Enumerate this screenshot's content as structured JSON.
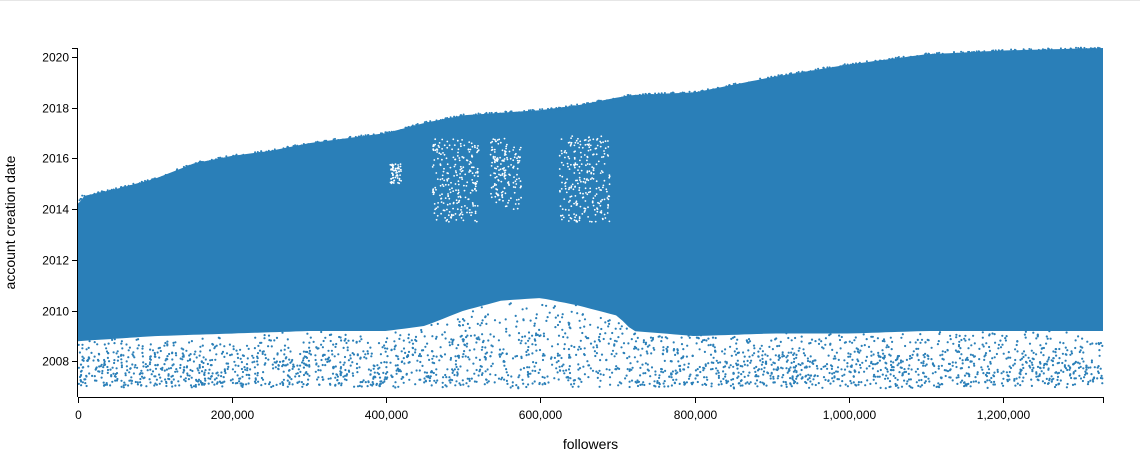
{
  "chart_data": {
    "type": "scatter",
    "xlabel": "followers",
    "ylabel": "account creation date",
    "xlim": [
      0,
      1330000
    ],
    "ylim": [
      2006.6,
      2020.35
    ],
    "x_ticks": [
      0,
      200000,
      400000,
      600000,
      800000,
      1000000,
      1200000
    ],
    "x_tick_labels": [
      "0",
      "200,000",
      "400,000",
      "600,000",
      "800,000",
      "1,000,000",
      "1,200,000"
    ],
    "y_ticks": [
      2008,
      2010,
      2012,
      2014,
      2016,
      2018,
      2020
    ],
    "y_tick_labels": [
      "2008",
      "2010",
      "2012",
      "2014",
      "2016",
      "2018",
      "2020"
    ],
    "grid": false,
    "legend": "none",
    "colors": {
      "points": "#2a7fb8"
    },
    "upper_envelope": {
      "x": [
        0,
        5000,
        20000,
        50000,
        100000,
        150000,
        200000,
        250000,
        300000,
        350000,
        400000,
        450000,
        500000,
        550000,
        600000,
        650000,
        700000,
        720000,
        800000,
        900000,
        1000000,
        1100000,
        1200000,
        1330000
      ],
      "y": [
        2014.2,
        2014.5,
        2014.6,
        2014.8,
        2015.2,
        2015.8,
        2016.1,
        2016.3,
        2016.6,
        2016.8,
        2017.0,
        2017.4,
        2017.7,
        2017.8,
        2017.9,
        2018.1,
        2018.4,
        2018.5,
        2018.6,
        2019.2,
        2019.7,
        2020.1,
        2020.25,
        2020.35
      ]
    },
    "dense_lower_bound": {
      "x": [
        0,
        100000,
        200000,
        300000,
        400000,
        450000,
        500000,
        550000,
        600000,
        650000,
        700000,
        720000,
        800000,
        900000,
        1000000,
        1100000,
        1200000,
        1330000
      ],
      "y": [
        2008.8,
        2009.0,
        2009.1,
        2009.2,
        2009.2,
        2009.4,
        2010.0,
        2010.4,
        2010.5,
        2010.2,
        2009.8,
        2009.2,
        2009.0,
        2009.1,
        2009.1,
        2009.2,
        2009.2,
        2009.2
      ]
    },
    "sparse_region": {
      "y_min": 2007.0
    },
    "sparse_gaps": [
      {
        "x": [
          460000,
          520000
        ],
        "y": [
          2013.5,
          2016.8
        ]
      },
      {
        "x": [
          535000,
          575000
        ],
        "y": [
          2014.0,
          2016.8
        ]
      },
      {
        "x": [
          625000,
          690000
        ],
        "y": [
          2013.5,
          2016.9
        ]
      },
      {
        "x": [
          405000,
          420000
        ],
        "y": [
          2015.0,
          2015.8
        ]
      }
    ]
  }
}
